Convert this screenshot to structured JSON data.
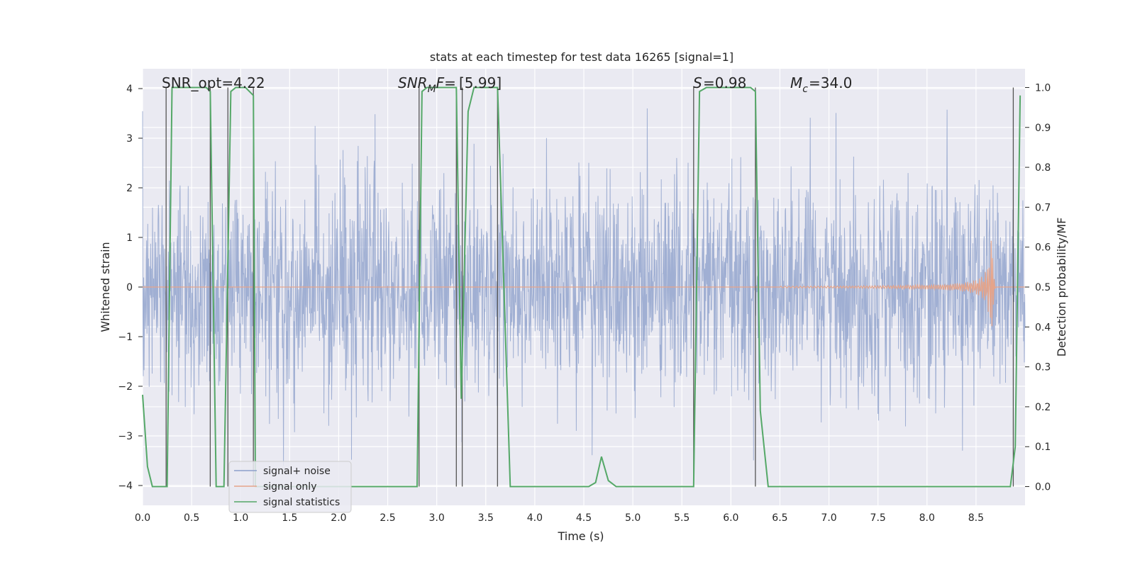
{
  "chart_data": {
    "type": "line",
    "title": "stats at each timestep for test data 16265 [signal=1]",
    "xlabel": "Time (s)",
    "ylabel": "Whitened strain",
    "y2label": "Detection probability/MF",
    "xlim": [
      0.0,
      9.0
    ],
    "ylim": [
      -4.4,
      4.4
    ],
    "y2lim": [
      -0.047,
      1.047
    ],
    "xticks": [
      "0.0",
      "0.5",
      "1.0",
      "1.5",
      "2.0",
      "2.5",
      "3.0",
      "3.5",
      "4.0",
      "4.5",
      "5.0",
      "5.5",
      "6.0",
      "6.5",
      "7.0",
      "7.5",
      "8.0",
      "8.5"
    ],
    "yticks": [
      "4",
      "3",
      "2",
      "1",
      "0",
      "−1",
      "−2",
      "−3",
      "−4"
    ],
    "y2ticks": [
      "1.0",
      "0.9",
      "0.8",
      "0.7",
      "0.6",
      "0.5",
      "0.4",
      "0.3",
      "0.2",
      "0.1",
      "0.0"
    ],
    "grid": true,
    "legend_placement": "lower-left",
    "annotations": {
      "snr_opt": "SNR_opt=4.22",
      "snr_mf": "[5.99]",
      "s": "=0.98",
      "mc": "=34.0"
    },
    "series": [
      {
        "name": "signal+ noise",
        "color": "#8da0cb",
        "description_type": "noise",
        "amplitude_envelope": 2.4
      },
      {
        "name": "signal only",
        "color": "#e5a48a",
        "chirp": {
          "start": 6.5,
          "peak": 8.65,
          "peak_amplitude": 1.05
        }
      },
      {
        "name": "signal statistics",
        "color": "#55a868",
        "x": [
          0.0,
          0.05,
          0.1,
          0.25,
          0.3,
          0.45,
          0.65,
          0.69,
          0.75,
          0.83,
          0.9,
          0.95,
          1.05,
          1.13,
          1.15,
          1.2,
          2.8,
          2.85,
          2.9,
          3.0,
          3.15,
          3.2,
          3.25,
          3.32,
          3.38,
          3.45,
          3.62,
          3.75,
          3.8,
          4.0,
          4.55,
          4.62,
          4.68,
          4.75,
          4.83,
          5.0,
          5.62,
          5.68,
          5.75,
          6.2,
          6.25,
          6.3,
          6.38,
          7.0,
          8.85,
          8.9,
          8.95
        ],
        "values": [
          0.23,
          0.05,
          0.0,
          0.0,
          1.0,
          1.0,
          1.0,
          0.99,
          0.0,
          0.0,
          0.99,
          1.0,
          1.0,
          0.98,
          0.0,
          0.0,
          0.0,
          0.99,
          1.0,
          1.0,
          1.0,
          1.0,
          0.22,
          0.94,
          1.0,
          1.0,
          1.0,
          0.0,
          0.0,
          0.0,
          0.0,
          0.01,
          0.075,
          0.015,
          0.0,
          0.0,
          0.0,
          0.99,
          1.0,
          1.0,
          0.99,
          0.19,
          0.0,
          0.0,
          0.0,
          0.1,
          0.98
        ]
      }
    ],
    "vlines_x": [
      0.24,
      0.69,
      0.87,
      1.13,
      2.82,
      3.2,
      3.26,
      3.62,
      5.62,
      6.25,
      8.88
    ]
  }
}
